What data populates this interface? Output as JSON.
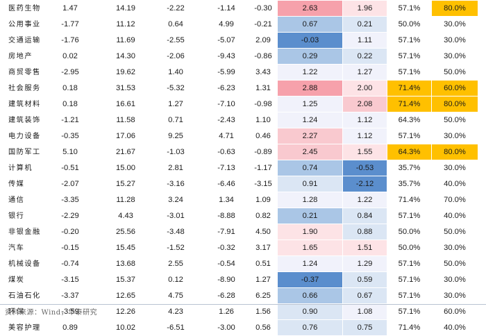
{
  "colors": {
    "pos_strong": "#f6a1ab",
    "pos_mid": "#f9c9cf",
    "pos_light": "#fde3e6",
    "neg_strong": "#5b8ecd",
    "neg_mid": "#aac6e6",
    "neg_light": "#dbe6f4",
    "neutral": "#f1f2fb",
    "highlight": "#ffc000"
  },
  "rows": [
    {
      "name": "医药生物",
      "v1": "1.47",
      "v2": "14.19",
      "v3": "-2.22",
      "v4": "-1.14",
      "v5": "-0.30",
      "s1": "2.63",
      "s2": "1.96",
      "p1": "57.1%",
      "p2": "80.0%",
      "bg1": "pos_strong",
      "bg2": "pos_light",
      "hl1": false,
      "hl2": true
    },
    {
      "name": "公用事业",
      "v1": "-1.77",
      "v2": "11.12",
      "v3": "0.64",
      "v4": "4.99",
      "v5": "-0.21",
      "s1": "0.67",
      "s2": "0.21",
      "p1": "50.0%",
      "p2": "30.0%",
      "bg1": "neg_mid",
      "bg2": "neg_light",
      "hl1": false,
      "hl2": false
    },
    {
      "name": "交通运输",
      "v1": "-1.76",
      "v2": "11.69",
      "v3": "-2.55",
      "v4": "-5.07",
      "v5": "2.09",
      "s1": "-0.03",
      "s2": "1.11",
      "p1": "57.1%",
      "p2": "30.0%",
      "bg1": "neg_strong",
      "bg2": "neutral",
      "hl1": false,
      "hl2": false
    },
    {
      "name": "房地产",
      "v1": "0.02",
      "v2": "14.30",
      "v3": "-2.06",
      "v4": "-9.43",
      "v5": "-0.86",
      "s1": "0.29",
      "s2": "0.22",
      "p1": "57.1%",
      "p2": "30.0%",
      "bg1": "neg_mid",
      "bg2": "neg_light",
      "hl1": false,
      "hl2": false
    },
    {
      "name": "商贸零售",
      "v1": "-2.95",
      "v2": "19.62",
      "v3": "1.40",
      "v4": "-5.99",
      "v5": "3.43",
      "s1": "1.22",
      "s2": "1.27",
      "p1": "57.1%",
      "p2": "50.0%",
      "bg1": "neutral",
      "bg2": "neutral",
      "hl1": false,
      "hl2": false
    },
    {
      "name": "社会服务",
      "v1": "0.18",
      "v2": "31.53",
      "v3": "-5.32",
      "v4": "-6.23",
      "v5": "1.31",
      "s1": "2.88",
      "s2": "2.00",
      "p1": "71.4%",
      "p2": "60.0%",
      "bg1": "pos_strong",
      "bg2": "pos_light",
      "hl1": true,
      "hl2": true
    },
    {
      "name": "建筑材料",
      "v1": "0.18",
      "v2": "16.61",
      "v3": "1.27",
      "v4": "-7.10",
      "v5": "-0.98",
      "s1": "1.25",
      "s2": "2.08",
      "p1": "71.4%",
      "p2": "80.0%",
      "bg1": "neutral",
      "bg2": "pos_mid",
      "hl1": true,
      "hl2": true
    },
    {
      "name": "建筑装饰",
      "v1": "-1.21",
      "v2": "11.58",
      "v3": "0.71",
      "v4": "-2.43",
      "v5": "1.10",
      "s1": "1.24",
      "s2": "1.12",
      "p1": "64.3%",
      "p2": "50.0%",
      "bg1": "neutral",
      "bg2": "neutral",
      "hl1": false,
      "hl2": false
    },
    {
      "name": "电力设备",
      "v1": "-0.35",
      "v2": "17.06",
      "v3": "9.25",
      "v4": "4.71",
      "v5": "0.46",
      "s1": "2.27",
      "s2": "1.12",
      "p1": "57.1%",
      "p2": "30.0%",
      "bg1": "pos_mid",
      "bg2": "neutral",
      "hl1": false,
      "hl2": false
    },
    {
      "name": "国防军工",
      "v1": "5.10",
      "v2": "21.67",
      "v3": "-1.03",
      "v4": "-0.63",
      "v5": "-0.89",
      "s1": "2.45",
      "s2": "1.55",
      "p1": "64.3%",
      "p2": "80.0%",
      "bg1": "pos_mid",
      "bg2": "pos_light",
      "hl1": true,
      "hl2": true
    },
    {
      "name": "计算机",
      "v1": "-0.51",
      "v2": "15.00",
      "v3": "2.81",
      "v4": "-7.13",
      "v5": "-1.17",
      "s1": "0.74",
      "s2": "-0.53",
      "p1": "35.7%",
      "p2": "30.0%",
      "bg1": "neg_mid",
      "bg2": "neg_strong",
      "hl1": false,
      "hl2": false
    },
    {
      "name": "传媒",
      "v1": "-2.07",
      "v2": "15.27",
      "v3": "-3.16",
      "v4": "-6.46",
      "v5": "-3.15",
      "s1": "0.91",
      "s2": "-2.12",
      "p1": "35.7%",
      "p2": "40.0%",
      "bg1": "neg_light",
      "bg2": "neg_strong",
      "hl1": false,
      "hl2": false
    },
    {
      "name": "通信",
      "v1": "-3.35",
      "v2": "11.28",
      "v3": "3.24",
      "v4": "1.34",
      "v5": "1.09",
      "s1": "1.28",
      "s2": "1.22",
      "p1": "71.4%",
      "p2": "70.0%",
      "bg1": "neutral",
      "bg2": "neutral",
      "hl1": false,
      "hl2": false
    },
    {
      "name": "银行",
      "v1": "-2.29",
      "v2": "4.43",
      "v3": "-3.01",
      "v4": "-8.88",
      "v5": "0.82",
      "s1": "0.21",
      "s2": "0.84",
      "p1": "57.1%",
      "p2": "40.0%",
      "bg1": "neg_mid",
      "bg2": "neg_light",
      "hl1": false,
      "hl2": false
    },
    {
      "name": "非银金融",
      "v1": "-0.20",
      "v2": "25.56",
      "v3": "-3.48",
      "v4": "-7.91",
      "v5": "4.50",
      "s1": "1.90",
      "s2": "0.88",
      "p1": "50.0%",
      "p2": "50.0%",
      "bg1": "pos_light",
      "bg2": "neg_light",
      "hl1": false,
      "hl2": false
    },
    {
      "name": "汽车",
      "v1": "-0.15",
      "v2": "15.45",
      "v3": "-1.52",
      "v4": "-0.32",
      "v5": "3.17",
      "s1": "1.65",
      "s2": "1.51",
      "p1": "50.0%",
      "p2": "30.0%",
      "bg1": "pos_light",
      "bg2": "pos_light",
      "hl1": false,
      "hl2": false
    },
    {
      "name": "机械设备",
      "v1": "-0.74",
      "v2": "13.68",
      "v3": "2.55",
      "v4": "-0.54",
      "v5": "0.51",
      "s1": "1.24",
      "s2": "1.29",
      "p1": "57.1%",
      "p2": "50.0%",
      "bg1": "neutral",
      "bg2": "neutral",
      "hl1": false,
      "hl2": false
    },
    {
      "name": "煤炭",
      "v1": "-3.15",
      "v2": "15.37",
      "v3": "0.12",
      "v4": "-8.90",
      "v5": "1.27",
      "s1": "-0.37",
      "s2": "0.59",
      "p1": "57.1%",
      "p2": "30.0%",
      "bg1": "neg_strong",
      "bg2": "neg_light",
      "hl1": false,
      "hl2": false
    },
    {
      "name": "石油石化",
      "v1": "-3.37",
      "v2": "12.65",
      "v3": "4.75",
      "v4": "-6.28",
      "v5": "6.25",
      "s1": "0.66",
      "s2": "0.67",
      "p1": "57.1%",
      "p2": "30.0%",
      "bg1": "neg_mid",
      "bg2": "neg_light",
      "hl1": false,
      "hl2": false
    },
    {
      "name": "环保",
      "v1": "-3.59",
      "v2": "12.26",
      "v3": "4.23",
      "v4": "1.26",
      "v5": "1.56",
      "s1": "0.90",
      "s2": "1.08",
      "p1": "57.1%",
      "p2": "60.0%",
      "bg1": "neg_light",
      "bg2": "neutral",
      "hl1": false,
      "hl2": false
    },
    {
      "name": "美容护理",
      "v1": "0.89",
      "v2": "10.02",
      "v3": "-6.51",
      "v4": "-3.00",
      "v5": "0.56",
      "s1": "0.76",
      "s2": "0.75",
      "p1": "71.4%",
      "p2": "40.0%",
      "bg1": "neg_light",
      "bg2": "neg_light",
      "hl1": false,
      "hl2": false
    }
  ],
  "source": "资料来源：Wind，华泰研究"
}
